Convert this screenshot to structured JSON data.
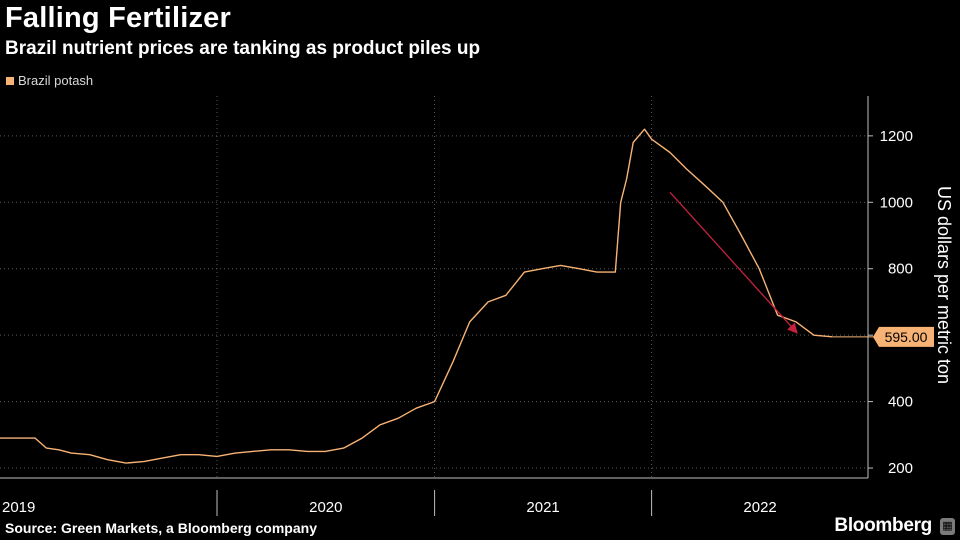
{
  "header": {
    "title": "Falling Fertilizer",
    "subtitle": "Brazil nutrient prices are tanking as product piles up"
  },
  "footer": {
    "source": "Source: Green Markets, a Bloomberg company",
    "brand": "Bloomberg",
    "brand_icon": "bloomberg-terminal-icon"
  },
  "colors": {
    "background": "#000000",
    "line": "#f7b375",
    "arrow": "#c4213f",
    "grid": "#5a5a5a"
  },
  "chart_data": {
    "type": "line",
    "title": "Falling Fertilizer",
    "subtitle": "Brazil nutrient prices are tanking as product piles up",
    "ylabel": "US dollars per metric ton",
    "xlabel": "",
    "ylim": [
      170,
      1320
    ],
    "y_ticks": [
      200,
      400,
      600,
      800,
      1000,
      1200
    ],
    "y_tick_labels": [
      "200",
      "400",
      "",
      "800",
      "1000",
      "1200"
    ],
    "x_range": [
      "2019-01-01",
      "2022-12-31"
    ],
    "x_ticks": [
      "2019-01-01",
      "2020-01-01",
      "2021-01-01",
      "2022-01-01",
      "2023-01-01"
    ],
    "x_tick_labels": [
      "2019",
      "2020",
      "2021",
      "2022"
    ],
    "grid": true,
    "legend_placement": "top-left",
    "last_value_label": "595.00",
    "series": [
      {
        "name": "Brazil potash",
        "x": [
          "2018-12-01",
          "2019-03-01",
          "2019-03-20",
          "2019-04-10",
          "2019-05-01",
          "2019-06-01",
          "2019-07-01",
          "2019-08-01",
          "2019-09-01",
          "2019-10-01",
          "2019-11-01",
          "2019-12-01",
          "2020-01-01",
          "2020-02-01",
          "2020-03-01",
          "2020-04-01",
          "2020-05-01",
          "2020-06-01",
          "2020-07-01",
          "2020-08-01",
          "2020-09-01",
          "2020-10-01",
          "2020-11-01",
          "2020-12-01",
          "2021-01-01",
          "2021-02-01",
          "2021-03-01",
          "2021-04-01",
          "2021-05-01",
          "2021-06-01",
          "2021-07-01",
          "2021-08-01",
          "2021-09-01",
          "2021-10-01",
          "2021-11-01",
          "2021-11-10",
          "2021-11-20",
          "2021-12-01",
          "2021-12-20",
          "2022-01-01",
          "2022-02-01",
          "2022-03-01",
          "2022-04-01",
          "2022-05-01",
          "2022-06-01",
          "2022-07-01",
          "2022-08-01",
          "2022-09-01",
          "2022-10-01",
          "2022-11-01"
        ],
        "y": [
          290,
          290,
          260,
          255,
          245,
          240,
          225,
          215,
          220,
          230,
          240,
          240,
          235,
          245,
          250,
          255,
          255,
          250,
          250,
          260,
          290,
          330,
          350,
          380,
          400,
          520,
          640,
          700,
          720,
          790,
          800,
          810,
          800,
          790,
          790,
          1000,
          1070,
          1180,
          1220,
          1190,
          1150,
          1100,
          1050,
          1000,
          900,
          800,
          660,
          640,
          600,
          595
        ]
      }
    ],
    "annotation": {
      "type": "arrow",
      "from": {
        "x": "2022-02-01",
        "y": 1030
      },
      "to": {
        "x": "2022-09-01",
        "y": 610
      }
    }
  }
}
